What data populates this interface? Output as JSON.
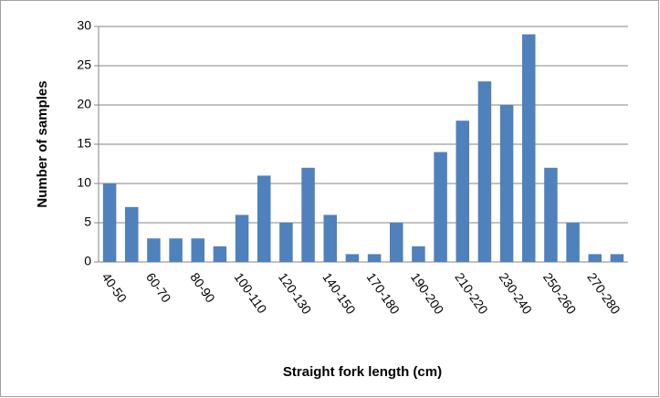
{
  "chart_data": {
    "type": "bar",
    "x_label": "Straight fork length (cm)",
    "y_label": "Number of samples",
    "categories": [
      "40-50",
      null,
      "60-70",
      null,
      "80-90",
      null,
      "100-110",
      null,
      "120-130",
      null,
      "140-150",
      null,
      "170-180",
      null,
      "190-200",
      null,
      "210-220",
      null,
      "230-240",
      null,
      "250-260",
      null,
      "270-280",
      null
    ],
    "values": [
      10,
      7,
      3,
      3,
      3,
      2,
      6,
      11,
      5,
      12,
      6,
      1,
      1,
      5,
      2,
      14,
      18,
      23,
      20,
      29,
      12,
      5,
      1,
      1
    ],
    "color": "#4f81bd",
    "ylim": [
      0,
      30
    ],
    "yticks": [
      0,
      5,
      10,
      15,
      20,
      25,
      30
    ],
    "grid": true
  }
}
